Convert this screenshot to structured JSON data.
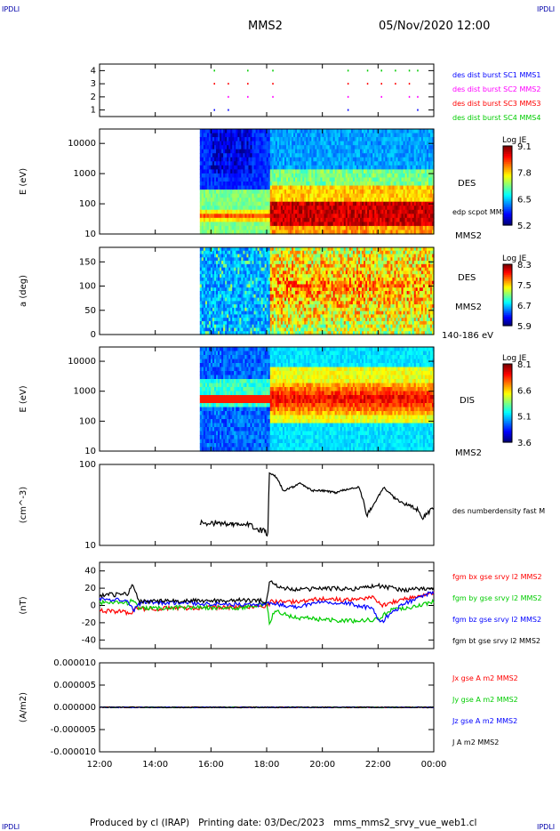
{
  "header": {
    "corner_left_top": "IPDLI",
    "corner_right_top": "IPDLI",
    "corner_left_bottom": "IPDLI",
    "corner_right_bottom": "IPDLI",
    "title": "MMS2",
    "datetime": "05/Nov/2020 12:00"
  },
  "footer": {
    "credit": "Produced by cl (IRAP)",
    "printing_date": "Printing date: 03/Dec/2023",
    "file": "mms_mms2_srvy_vue_web1.cl"
  },
  "time_axis": {
    "ticks": [
      "12:00",
      "14:00",
      "16:00",
      "18:00",
      "20:00",
      "22:00",
      "00:00"
    ]
  },
  "chart_data": [
    {
      "type": "scatter",
      "id": "burst",
      "yticks": [
        "1",
        "2",
        "3",
        "4"
      ],
      "legend": [
        {
          "label": "des dist burst SC1 MMS1",
          "color": "#0000ff"
        },
        {
          "label": "des dist burst SC2 MMS2",
          "color": "#ff00ff"
        },
        {
          "label": "des dist burst SC3 MMS3",
          "color": "#ff0000"
        },
        {
          "label": "des dist burst SC4 MMS4",
          "color": "#00cc00"
        }
      ],
      "burst_times_h": [
        16.1,
        16.6,
        17.3,
        18.2,
        20.9,
        21.6,
        22.1,
        22.6,
        23.1,
        23.4
      ]
    },
    {
      "type": "heatmap",
      "id": "des-energy",
      "ylabel": "E (eV)",
      "yticks": [
        "10",
        "100",
        "1000",
        "10000"
      ],
      "ylim": [
        10,
        30000
      ],
      "yscale": "log",
      "labels": [
        "DES",
        "edp scpot MMS2",
        "MMS2"
      ],
      "colorbar": {
        "title": "Log JE",
        "ticks": [
          "9.1",
          "7.8",
          "6.5",
          "5.2"
        ],
        "range": [
          5.2,
          9.1
        ]
      }
    },
    {
      "type": "heatmap",
      "id": "des-pitch",
      "ylabel": "a (deg)",
      "yticks": [
        "0",
        "50",
        "100",
        "150"
      ],
      "ylim": [
        0,
        180
      ],
      "labels": [
        "DES",
        "MMS2",
        "140-186 eV"
      ],
      "colorbar": {
        "title": "Log JE",
        "ticks": [
          "8.3",
          "7.5",
          "6.7",
          "5.9"
        ],
        "range": [
          5.9,
          8.3
        ]
      }
    },
    {
      "type": "heatmap",
      "id": "dis-energy",
      "ylabel": "E (eV)",
      "yticks": [
        "10",
        "100",
        "1000",
        "10000"
      ],
      "ylim": [
        10,
        30000
      ],
      "yscale": "log",
      "labels": [
        "DIS",
        "MMS2"
      ],
      "colorbar": {
        "title": "Log JE",
        "ticks": [
          "8.1",
          "6.6",
          "5.1",
          "3.6"
        ],
        "range": [
          3.6,
          8.1
        ]
      }
    },
    {
      "type": "line",
      "id": "density",
      "ylabel": "(cm^-3)",
      "yticks": [
        "10",
        "100"
      ],
      "ylim": [
        10,
        100
      ],
      "yscale": "log",
      "series": [
        {
          "name": "des numberdensity fast M",
          "color": "#000000",
          "x": [
            15.6,
            16.2,
            16.8,
            17.4,
            17.9,
            18.05,
            18.1,
            18.3,
            18.6,
            18.9,
            19.2,
            19.6,
            20.1,
            20.5,
            20.9,
            21.3,
            21.6,
            21.9,
            22.2,
            22.6,
            23.0,
            23.4,
            23.6,
            23.8,
            24.0
          ],
          "y": [
            19,
            19,
            18,
            18,
            15,
            13,
            78,
            72,
            47,
            52,
            58,
            48,
            47,
            45,
            50,
            52,
            23,
            34,
            52,
            38,
            32,
            28,
            22,
            25,
            30
          ]
        }
      ]
    },
    {
      "type": "line",
      "id": "bfield",
      "ylabel": "(nT)",
      "yticks": [
        "-40",
        "-20",
        "0",
        "20",
        "40"
      ],
      "ylim": [
        -50,
        50
      ],
      "series": [
        {
          "name": "fgm bx gse srvy l2 MMS2",
          "color": "#ff0000",
          "x": [
            12,
            13,
            13.1,
            13.3,
            15,
            17,
            18,
            18.2,
            19,
            20,
            21,
            21.8,
            22.1,
            22.5,
            23,
            24
          ],
          "y": [
            -6,
            -8,
            -10,
            -4,
            -3,
            -2,
            0,
            5,
            4,
            8,
            6,
            10,
            0,
            4,
            8,
            14
          ]
        },
        {
          "name": "fgm by gse srvy l2 MMS2",
          "color": "#00cc00",
          "x": [
            12,
            13,
            13.2,
            13.4,
            15,
            17,
            18,
            18.1,
            18.3,
            19,
            20,
            21,
            22,
            22.5,
            23,
            24
          ],
          "y": [
            3,
            3,
            6,
            -4,
            -2,
            -3,
            2,
            -20,
            -6,
            -14,
            -16,
            -18,
            -16,
            -4,
            -3,
            4
          ]
        },
        {
          "name": "fgm bz gse srvy l2 MMS2",
          "color": "#0000ff",
          "x": [
            12,
            13,
            13.2,
            13.5,
            15,
            17,
            18,
            18.2,
            19,
            20,
            21,
            21.8,
            22.1,
            22.5,
            23,
            24
          ],
          "y": [
            8,
            7,
            -6,
            4,
            3,
            1,
            1,
            3,
            -2,
            5,
            2,
            -4,
            -20,
            -8,
            3,
            16
          ]
        },
        {
          "name": "fgm bt gse srvy l2 MMS2",
          "color": "#000000",
          "x": [
            12,
            13,
            13.2,
            13.4,
            15,
            17,
            18,
            18.1,
            18.4,
            19,
            20,
            21,
            22,
            22.5,
            23,
            24
          ],
          "y": [
            12,
            13,
            25,
            5,
            5,
            6,
            5,
            28,
            22,
            18,
            20,
            19,
            23,
            20,
            18,
            20
          ]
        }
      ]
    },
    {
      "type": "line",
      "id": "current",
      "ylabel": "(A/m2)",
      "yticks": [
        "0.000010",
        "0.000005",
        "0.000000",
        "-0.000005",
        "-0.000010"
      ],
      "ylim": [
        -1e-05,
        1e-05
      ],
      "series": [
        {
          "name": "Jx gse A m2 MMS2",
          "color": "#ff0000",
          "x": [
            12,
            24
          ],
          "y": [
            0,
            0
          ]
        },
        {
          "name": "Jy gse A m2 MMS2",
          "color": "#00cc00",
          "x": [
            12,
            24
          ],
          "y": [
            0,
            0
          ]
        },
        {
          "name": "Jz gse A m2 MMS2",
          "color": "#0000ff",
          "x": [
            12,
            24
          ],
          "y": [
            0,
            0
          ]
        },
        {
          "name": "J A m2 MMS2",
          "color": "#000000",
          "x": [
            12,
            24
          ],
          "y": [
            0,
            0
          ]
        }
      ]
    }
  ]
}
